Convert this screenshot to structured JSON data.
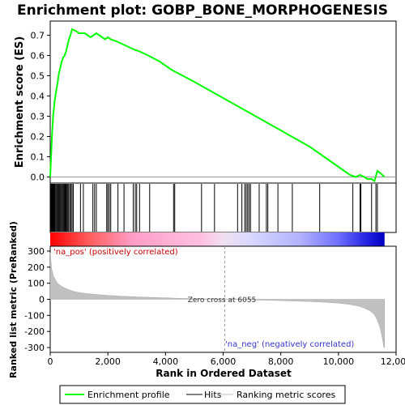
{
  "chart_data": {
    "type": "line",
    "title": "Enrichment plot: GOBP_BONE_MORPHOGENESIS",
    "xlabel": "Rank in Ordered Dataset",
    "ylabel_top": "Enrichment score (ES)",
    "ylabel_bottom": "Ranked list metric (PreRanked)",
    "x_ticks": [
      "0",
      "2,000",
      "4,000",
      "6,000",
      "8,000",
      "10,000",
      "12,000"
    ],
    "x_tick_values": [
      0,
      2000,
      4000,
      6000,
      8000,
      10000,
      12000
    ],
    "xlim": [
      0,
      12000
    ],
    "es_ticks": [
      "0.0",
      "0.1",
      "0.2",
      "0.3",
      "0.4",
      "0.5",
      "0.6",
      "0.7"
    ],
    "es_tick_values": [
      0.0,
      0.1,
      0.2,
      0.3,
      0.4,
      0.5,
      0.6,
      0.7
    ],
    "es_ylim": [
      -0.03,
      0.77
    ],
    "metric_ticks": [
      "300",
      "200",
      "100",
      "0",
      "-100",
      "-200",
      "-300"
    ],
    "metric_tick_values": [
      300,
      200,
      100,
      0,
      -100,
      -200,
      -300
    ],
    "metric_ylim": [
      -330,
      330
    ],
    "annotations": {
      "pos_label": "'na_pos' (positively correlated)",
      "neg_label": "'na_neg' (negatively correlated)",
      "zero_cross": "Zero cross at 6055",
      "zero_cross_rank": 6055
    },
    "legend": {
      "placement": "bottom",
      "items": [
        {
          "label": "Enrichment profile",
          "color": "#00ff00"
        },
        {
          "label": "Hits",
          "color": "#000000"
        },
        {
          "label": "Ranking metric scores",
          "color": "#c0c0c0"
        }
      ]
    },
    "series": [
      {
        "name": "Enrichment profile",
        "color": "#00ff00",
        "points": [
          [
            0,
            0.0
          ],
          [
            30,
            0.1
          ],
          [
            60,
            0.2
          ],
          [
            100,
            0.3
          ],
          [
            150,
            0.37
          ],
          [
            200,
            0.42
          ],
          [
            250,
            0.46
          ],
          [
            300,
            0.51
          ],
          [
            350,
            0.54
          ],
          [
            400,
            0.57
          ],
          [
            450,
            0.59
          ],
          [
            500,
            0.6
          ],
          [
            550,
            0.62
          ],
          [
            600,
            0.65
          ],
          [
            650,
            0.68
          ],
          [
            700,
            0.7
          ],
          [
            760,
            0.73
          ],
          [
            900,
            0.72
          ],
          [
            1000,
            0.71
          ],
          [
            1100,
            0.71
          ],
          [
            1200,
            0.71
          ],
          [
            1300,
            0.7
          ],
          [
            1400,
            0.69
          ],
          [
            1500,
            0.7
          ],
          [
            1600,
            0.71
          ],
          [
            1700,
            0.7
          ],
          [
            1800,
            0.69
          ],
          [
            1900,
            0.68
          ],
          [
            2000,
            0.69
          ],
          [
            2100,
            0.68
          ],
          [
            2300,
            0.67
          ],
          [
            2600,
            0.65
          ],
          [
            2900,
            0.63
          ],
          [
            3100,
            0.62
          ],
          [
            3400,
            0.6
          ],
          [
            3800,
            0.57
          ],
          [
            4200,
            0.53
          ],
          [
            4600,
            0.5
          ],
          [
            5000,
            0.47
          ],
          [
            5500,
            0.43
          ],
          [
            6000,
            0.39
          ],
          [
            6500,
            0.35
          ],
          [
            7000,
            0.31
          ],
          [
            7500,
            0.27
          ],
          [
            8000,
            0.23
          ],
          [
            8500,
            0.19
          ],
          [
            9000,
            0.15
          ],
          [
            9500,
            0.1
          ],
          [
            10000,
            0.05
          ],
          [
            10400,
            0.01
          ],
          [
            10600,
            0.0
          ],
          [
            10750,
            0.01
          ],
          [
            10900,
            0.0
          ],
          [
            11000,
            -0.01
          ],
          [
            11150,
            -0.01
          ],
          [
            11250,
            -0.02
          ],
          [
            11350,
            0.03
          ],
          [
            11450,
            0.02
          ],
          [
            11600,
            0.0
          ]
        ]
      }
    ],
    "hits": [
      20,
      40,
      60,
      80,
      100,
      120,
      140,
      160,
      190,
      220,
      250,
      280,
      310,
      340,
      370,
      400,
      430,
      460,
      490,
      520,
      550,
      580,
      610,
      640,
      680,
      720,
      760,
      800,
      1050,
      1150,
      1480,
      1540,
      1600,
      1960,
      2000,
      2050,
      2100,
      2350,
      2560,
      2880,
      2950,
      3000,
      3100,
      3450,
      4280,
      4320,
      5250,
      5700,
      6500,
      6650,
      6750,
      6800,
      6850,
      6900,
      6950,
      7250,
      7500,
      7550,
      7900,
      8400,
      9350,
      10500,
      10750,
      10780,
      11150,
      11300,
      11350
    ],
    "ranking_metric": {
      "n": 11600,
      "points": [
        [
          0,
          290
        ],
        [
          50,
          190
        ],
        [
          120,
          140
        ],
        [
          250,
          100
        ],
        [
          400,
          80
        ],
        [
          600,
          62
        ],
        [
          900,
          45
        ],
        [
          1200,
          37
        ],
        [
          1600,
          30
        ],
        [
          2000,
          24
        ],
        [
          2500,
          19
        ],
        [
          3000,
          15
        ],
        [
          3500,
          12
        ],
        [
          4000,
          9
        ],
        [
          4500,
          6
        ],
        [
          5000,
          4
        ],
        [
          5500,
          2
        ],
        [
          6055,
          0
        ],
        [
          6500,
          -2
        ],
        [
          7000,
          -4
        ],
        [
          7500,
          -6
        ],
        [
          8000,
          -8
        ],
        [
          8500,
          -11
        ],
        [
          9000,
          -14
        ],
        [
          9500,
          -18
        ],
        [
          10000,
          -24
        ],
        [
          10400,
          -32
        ],
        [
          10700,
          -42
        ],
        [
          10900,
          -55
        ],
        [
          11100,
          -72
        ],
        [
          11250,
          -95
        ],
        [
          11350,
          -130
        ],
        [
          11450,
          -180
        ],
        [
          11520,
          -240
        ],
        [
          11580,
          -300
        ],
        [
          11600,
          -300
        ]
      ]
    }
  }
}
